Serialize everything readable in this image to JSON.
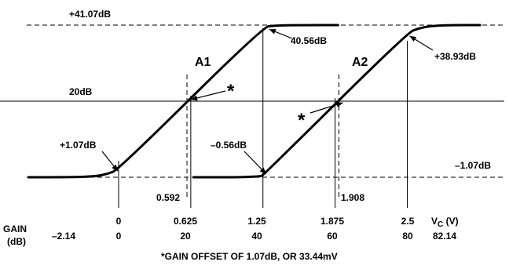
{
  "chart_data": {
    "type": "line",
    "x_axis": {
      "label_main": "V",
      "label_sub": "C",
      "label_unit": " (V)",
      "range": [
        -0.78,
        2.58
      ],
      "ticks": [
        0,
        0.625,
        1.25,
        1.875,
        2.5
      ],
      "tick_labels": [
        "0",
        "0.625",
        "1.25",
        "1.875",
        "2.5"
      ]
    },
    "gain_axis": {
      "label_line1": "GAIN",
      "label_line2": "(dB)",
      "ticks": [
        -2.14,
        0,
        20,
        40,
        60,
        80,
        82.14
      ],
      "tick_labels": [
        "–2.14",
        "0",
        "20",
        "40",
        "60",
        "80",
        "82.14"
      ]
    },
    "y_range_db": [
      -1.07,
      41.07
    ],
    "reference_lines": [
      {
        "value_db": 41.07,
        "style": "dashed",
        "label": "+41.07dB"
      },
      {
        "value_db": 20,
        "style": "solid",
        "label": "20dB"
      },
      {
        "value_db": -1.07,
        "style": "dashed",
        "label": "–1.07dB"
      }
    ],
    "series": [
      {
        "name": "A1",
        "x": [
          -0.78,
          -0.4,
          -0.2,
          -0.1,
          0.0,
          1.25,
          1.35,
          1.45,
          1.6,
          1.9
        ],
        "y": [
          -1.07,
          -1.07,
          -0.8,
          -0.2,
          1.07,
          40.56,
          40.92,
          41.02,
          41.07,
          41.07
        ]
      },
      {
        "name": "A2",
        "x": [
          0.65,
          1.0,
          1.15,
          1.23,
          1.25,
          2.5,
          2.6,
          2.7,
          2.85,
          3.13
        ],
        "y": [
          -1.07,
          -1.07,
          -0.95,
          -0.8,
          -0.56,
          38.93,
          40.2,
          40.8,
          41.07,
          41.07
        ]
      }
    ],
    "vertical_markers": [
      {
        "x": 0.592,
        "label": "0.592"
      },
      {
        "x": 1.908,
        "label": "1.908"
      }
    ],
    "annotations": [
      {
        "label": "+1.07dB",
        "x": 0.0,
        "y": 1.07
      },
      {
        "label": "40.56dB",
        "x": 1.25,
        "y": 40.56
      },
      {
        "label": "–0.56dB",
        "x": 1.25,
        "y": -0.56
      },
      {
        "label": "+38.93dB",
        "x": 2.5,
        "y": 38.93
      },
      {
        "label": "*",
        "x": 0.592,
        "y": 20
      },
      {
        "label": "*",
        "x": 1.908,
        "y": 20
      }
    ],
    "footnote": "*GAIN OFFSET OF 1.07dB, OR 33.44mV"
  }
}
